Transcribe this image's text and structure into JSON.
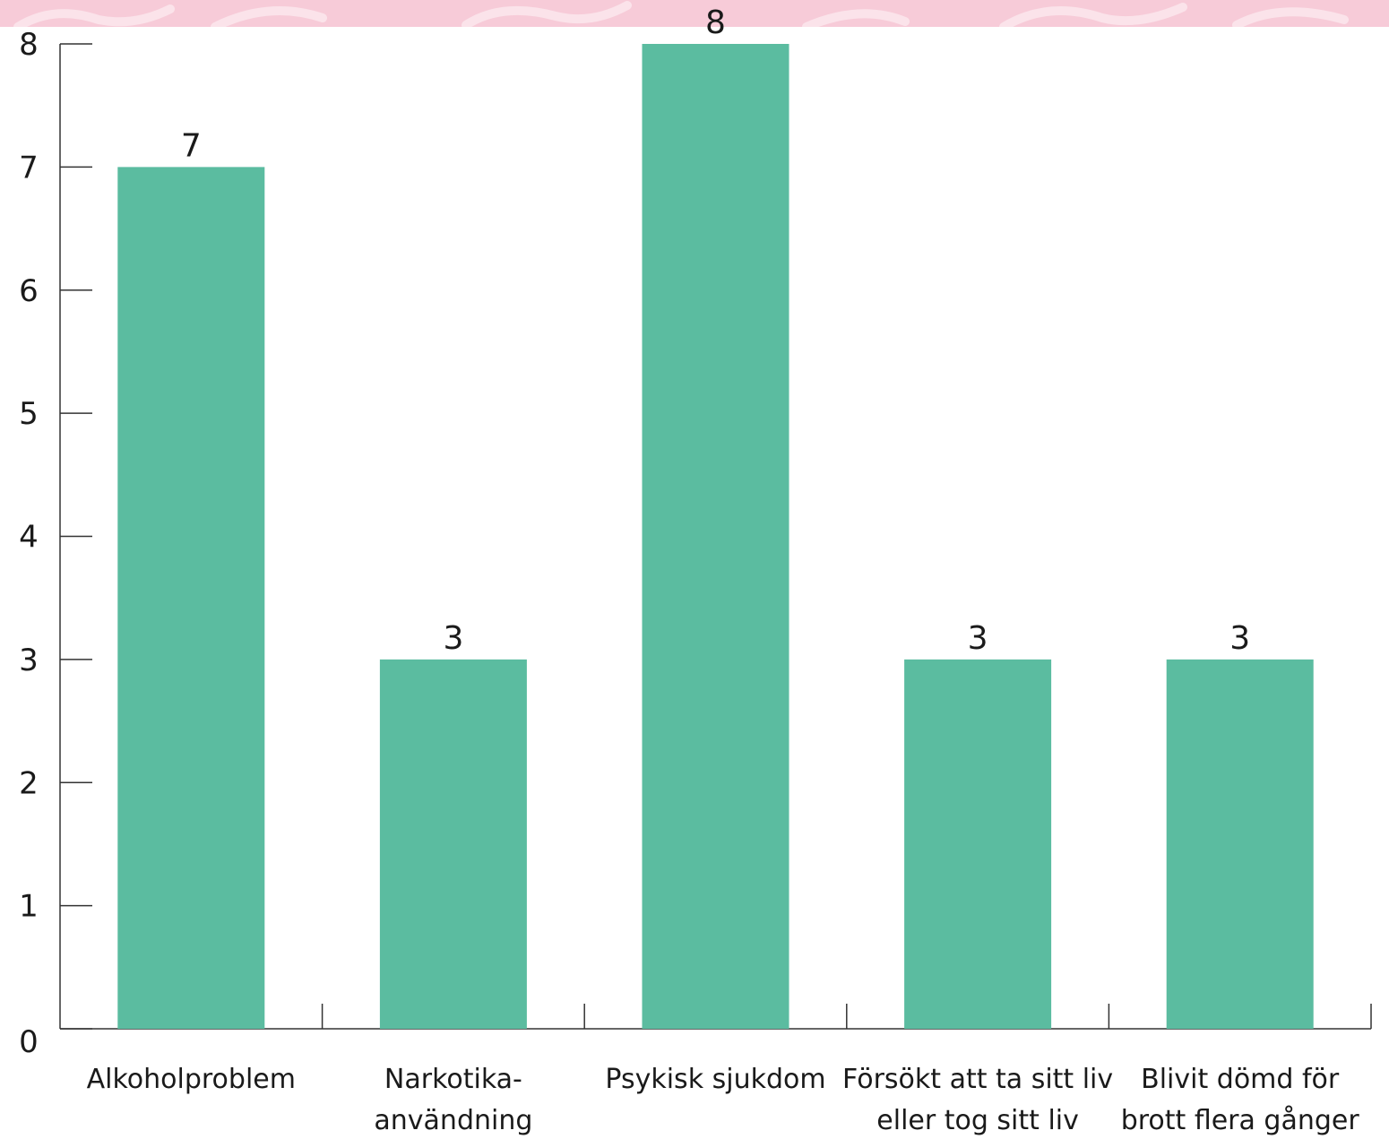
{
  "colors": {
    "bar": "#5bbca0",
    "banner": "#f7cbd8",
    "banner_pattern": "#fbe3ea"
  },
  "chart_data": {
    "type": "bar",
    "categories": [
      [
        "Alkoholproblem"
      ],
      [
        "Narkotika-",
        "användning"
      ],
      [
        "Psykisk sjukdom"
      ],
      [
        "Försökt att ta sitt liv",
        "eller tog sitt liv"
      ],
      [
        "Blivit dömd för",
        "brott flera gånger"
      ]
    ],
    "values": [
      7,
      3,
      8,
      3,
      3
    ],
    "value_labels": [
      "7",
      "3",
      "8",
      "3",
      "3"
    ],
    "yticks": [
      "0",
      "1",
      "2",
      "3",
      "4",
      "5",
      "6",
      "7",
      "8"
    ],
    "ylim": [
      0,
      8
    ],
    "grid": false,
    "title": "",
    "xlabel": "",
    "ylabel": ""
  }
}
